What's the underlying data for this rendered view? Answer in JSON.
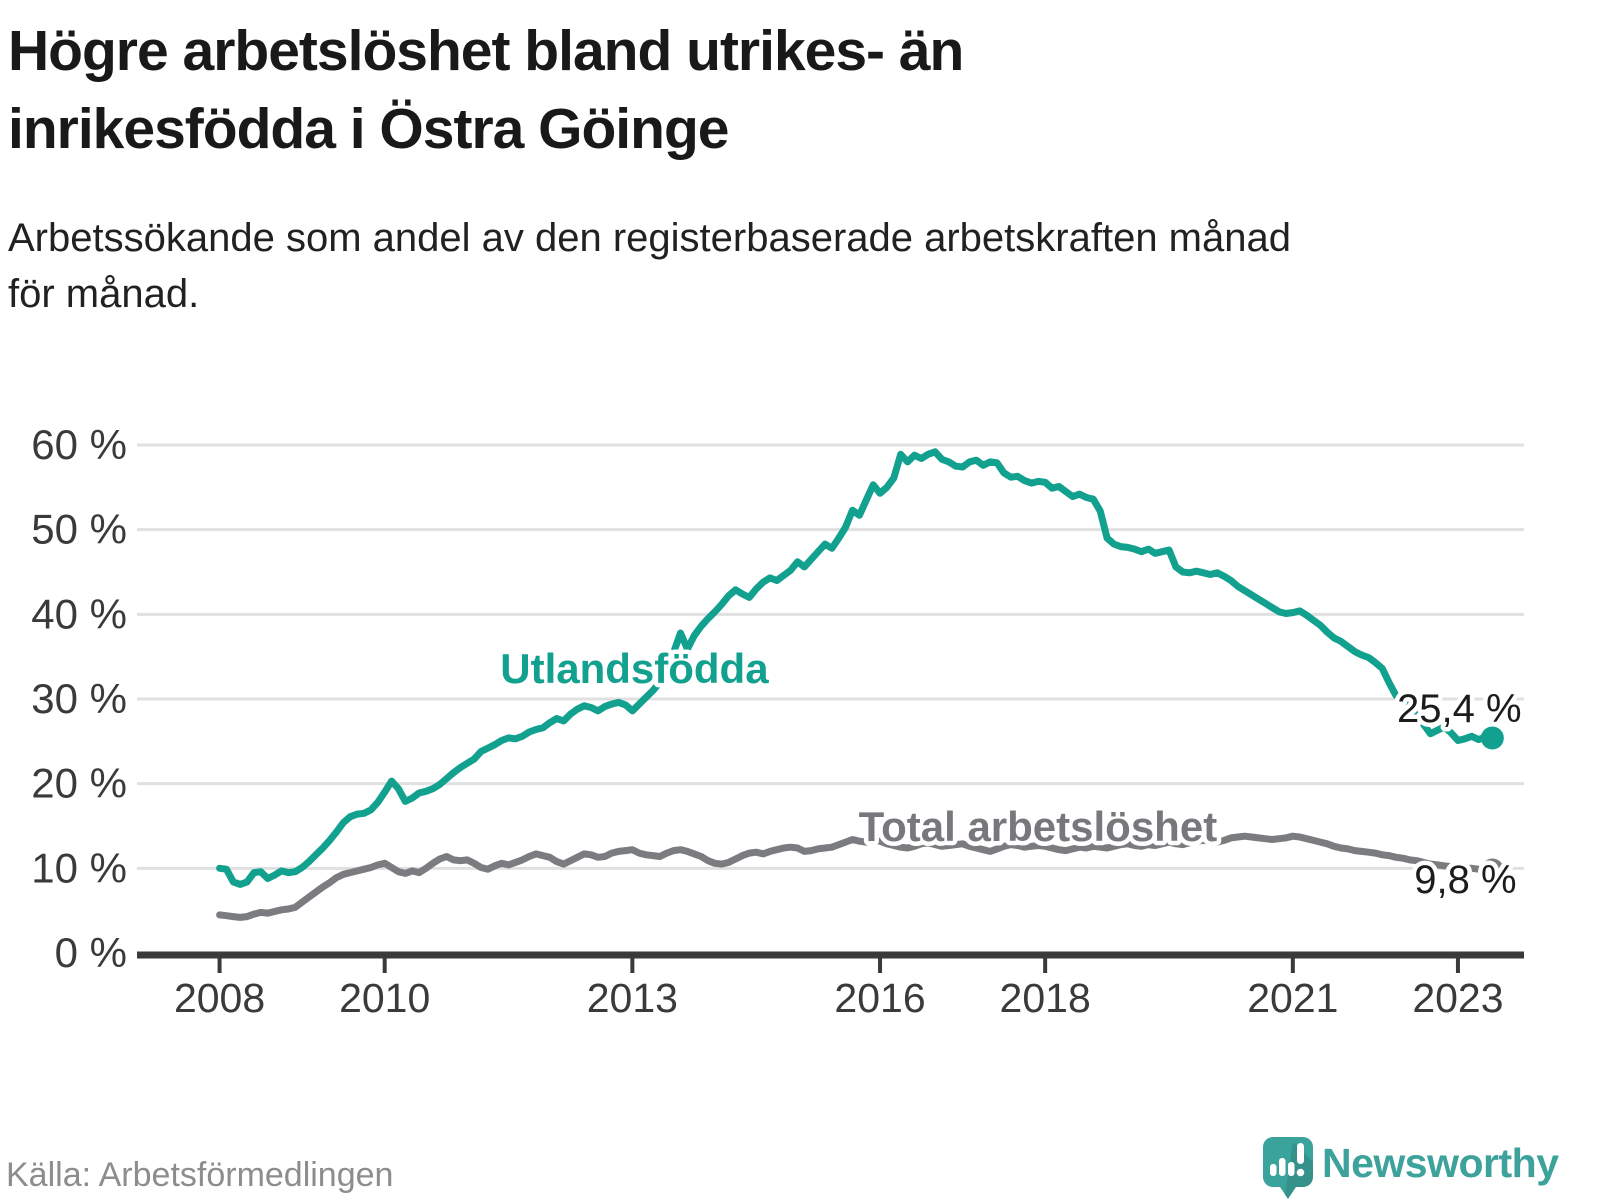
{
  "header": {
    "title": "Högre arbetslöshet bland utrikes- än inrikesfödda i Östra Göinge",
    "title_lines": [
      "Högre arbetslöshet bland utrikes- än",
      "inrikesfödda i Östra Göinge"
    ],
    "subtitle": "Arbetssökande som andel av den registerbaserade arbetskraften månad för månad.",
    "subtitle_lines": [
      "Arbetssökande som andel av den registerbaserade arbetskraften månad",
      "för månad."
    ]
  },
  "footer": {
    "source": "Källa: Arbetsförmedlingen",
    "brand": "Newsworthy"
  },
  "colors": {
    "utlandsfodda": "#12a08f",
    "total": "#7b7c80",
    "axis": "#3a3a3b",
    "grid": "#e0e0e0",
    "annotation_text": "#1c1c1c",
    "source_text": "#8d8d8d",
    "brand_teal": "#3da29b"
  },
  "chart_data": {
    "type": "line",
    "title": "Högre arbetslöshet bland utrikes- än inrikesfödda i Östra Göinge",
    "xlabel": "",
    "ylabel": "Arbetssökande som andel av den registerbaserade arbetskraften",
    "grid": "horizontal",
    "legend_position": "inline-labels",
    "xlim": [
      2007.0,
      2023.8
    ],
    "ylim": [
      0,
      60
    ],
    "x_start": 2008.0,
    "x_step": 0.0833333,
    "x_unit": "month",
    "x_ticks": [
      {
        "value": 2008,
        "label": "2008"
      },
      {
        "value": 2010,
        "label": "2010"
      },
      {
        "value": 2013,
        "label": "2013"
      },
      {
        "value": 2016,
        "label": "2016"
      },
      {
        "value": 2018,
        "label": "2018"
      },
      {
        "value": 2021,
        "label": "2021"
      },
      {
        "value": 2023,
        "label": "2023"
      }
    ],
    "y_ticks": [
      {
        "value": 0,
        "label": "0 %"
      },
      {
        "value": 10,
        "label": "10 %"
      },
      {
        "value": 20,
        "label": "20 %"
      },
      {
        "value": 30,
        "label": "30 %"
      },
      {
        "value": 40,
        "label": "40 %"
      },
      {
        "value": 50,
        "label": "50 %"
      },
      {
        "value": 60,
        "label": "60 %"
      }
    ],
    "series": [
      {
        "name": "Utlandsfödda",
        "color": "#12a08f",
        "end_label": "25,4 %",
        "end_value": 25.4,
        "values": [
          10.0,
          9.9,
          8.4,
          8.1,
          8.4,
          9.5,
          9.6,
          8.8,
          9.2,
          9.7,
          9.5,
          9.6,
          10.1,
          10.8,
          11.6,
          12.4,
          13.3,
          14.3,
          15.4,
          16.1,
          16.4,
          16.5,
          16.9,
          17.8,
          19.0,
          20.3,
          19.4,
          17.9,
          18.3,
          18.9,
          19.1,
          19.4,
          19.9,
          20.6,
          21.3,
          21.9,
          22.4,
          22.9,
          23.8,
          24.2,
          24.6,
          25.1,
          25.4,
          25.3,
          25.6,
          26.1,
          26.4,
          26.6,
          27.2,
          27.7,
          27.4,
          28.2,
          28.8,
          29.2,
          29.0,
          28.6,
          29.1,
          29.4,
          29.6,
          29.3,
          28.6,
          29.4,
          30.2,
          31.0,
          32.0,
          33.5,
          35.5,
          37.8,
          35.9,
          37.5,
          38.6,
          39.5,
          40.3,
          41.2,
          42.2,
          42.9,
          42.4,
          42.0,
          43.0,
          43.8,
          44.3,
          44.0,
          44.6,
          45.2,
          46.2,
          45.6,
          46.5,
          47.4,
          48.3,
          47.8,
          49.0,
          50.3,
          52.3,
          51.7,
          53.5,
          55.3,
          54.3,
          55.0,
          56.1,
          58.9,
          58.0,
          58.8,
          58.4,
          58.9,
          59.2,
          58.3,
          58.0,
          57.5,
          57.4,
          58.0,
          58.2,
          57.6,
          58.0,
          57.9,
          56.7,
          56.2,
          56.3,
          55.8,
          55.5,
          55.7,
          55.6,
          54.9,
          55.1,
          54.5,
          53.9,
          54.2,
          53.8,
          53.6,
          52.2,
          49.0,
          48.3,
          48.0,
          47.9,
          47.7,
          47.4,
          47.7,
          47.2,
          47.4,
          47.6,
          45.6,
          45.0,
          44.9,
          45.1,
          44.9,
          44.7,
          44.9,
          44.5,
          44.0,
          43.3,
          42.8,
          42.3,
          41.8,
          41.3,
          40.8,
          40.3,
          40.1,
          40.2,
          40.4,
          39.9,
          39.3,
          38.7,
          37.9,
          37.2,
          36.8,
          36.2,
          35.6,
          35.2,
          34.9,
          34.3,
          33.6,
          31.9,
          30.4,
          30.0,
          29.5,
          28.3,
          27.0,
          25.9,
          26.3,
          26.7,
          26.0,
          25.1,
          25.3,
          25.6,
          25.2,
          25.5,
          25.4
        ]
      },
      {
        "name": "Total arbetslöshet",
        "color": "#7b7c80",
        "end_label": "9,8 %",
        "end_value": 9.8,
        "values": [
          4.5,
          4.4,
          4.3,
          4.2,
          4.3,
          4.6,
          4.8,
          4.7,
          4.9,
          5.1,
          5.2,
          5.4,
          6.0,
          6.6,
          7.2,
          7.8,
          8.3,
          8.9,
          9.3,
          9.5,
          9.7,
          9.9,
          10.1,
          10.4,
          10.6,
          10.1,
          9.6,
          9.4,
          9.7,
          9.5,
          10.0,
          10.6,
          11.1,
          11.4,
          11.0,
          10.9,
          11.0,
          10.6,
          10.1,
          9.9,
          10.3,
          10.6,
          10.4,
          10.7,
          11.0,
          11.4,
          11.7,
          11.5,
          11.3,
          10.8,
          10.5,
          10.9,
          11.3,
          11.7,
          11.6,
          11.3,
          11.4,
          11.8,
          12.0,
          12.1,
          12.2,
          11.8,
          11.6,
          11.5,
          11.4,
          11.8,
          12.1,
          12.2,
          12.0,
          11.7,
          11.4,
          10.9,
          10.6,
          10.5,
          10.7,
          11.1,
          11.5,
          11.8,
          11.9,
          11.7,
          12.0,
          12.2,
          12.4,
          12.5,
          12.4,
          12.0,
          12.1,
          12.3,
          12.4,
          12.5,
          12.8,
          13.1,
          13.4,
          13.2,
          13.1,
          13.3,
          13.2,
          12.9,
          12.7,
          12.5,
          12.4,
          12.6,
          12.9,
          13.0,
          12.8,
          12.6,
          12.7,
          12.8,
          12.9,
          12.6,
          12.4,
          12.2,
          12.0,
          12.3,
          12.6,
          12.8,
          12.7,
          12.5,
          12.6,
          12.7,
          12.6,
          12.4,
          12.2,
          12.1,
          12.3,
          12.5,
          12.4,
          12.6,
          12.5,
          12.4,
          12.6,
          12.8,
          12.9,
          12.7,
          12.6,
          12.8,
          12.7,
          12.9,
          13.1,
          12.9,
          12.8,
          13.0,
          13.2,
          13.3,
          13.2,
          13.1,
          13.3,
          13.6,
          13.7,
          13.8,
          13.7,
          13.6,
          13.5,
          13.4,
          13.5,
          13.6,
          13.8,
          13.7,
          13.5,
          13.3,
          13.1,
          12.9,
          12.6,
          12.4,
          12.3,
          12.1,
          12.0,
          11.9,
          11.8,
          11.6,
          11.5,
          11.3,
          11.2,
          11.0,
          10.9,
          10.7,
          10.5,
          10.4,
          10.3,
          10.2,
          10.1,
          10.0,
          10.0,
          9.9,
          9.9,
          9.8
        ]
      }
    ],
    "annotations": [
      {
        "text": "Utlandsfödda",
        "x": 2011.4,
        "y": 31.9,
        "anchor": "start",
        "bold": true,
        "size": 42,
        "color": "#12a08f"
      },
      {
        "text": "Total arbetslöshet",
        "x": 2015.74,
        "y": 13.2,
        "anchor": "start",
        "bold": true,
        "size": 42,
        "color": "#77787c"
      },
      {
        "text": "25,4 %",
        "x": 2023.77,
        "y": 27.3,
        "anchor": "end",
        "bold": false,
        "size": 40,
        "color": "#1c1c1c"
      },
      {
        "text": "9,8 %",
        "x": 2023.71,
        "y": 7.1,
        "anchor": "end",
        "bold": false,
        "size": 40,
        "color": "#1c1c1c"
      }
    ]
  }
}
